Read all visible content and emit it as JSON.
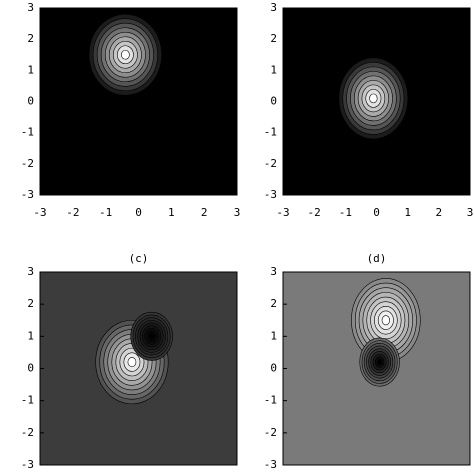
{
  "chart_data": [
    {
      "type": "contour",
      "background": "#000000",
      "xlim": [
        -3,
        3
      ],
      "ylim": [
        -3,
        3
      ],
      "xticks": [
        -3,
        -2,
        -1,
        0,
        1,
        2,
        3
      ],
      "yticks": [
        -3,
        -2,
        -1,
        0,
        1,
        2,
        3
      ],
      "peaks": [
        {
          "x": -0.4,
          "y": 1.5,
          "color": "#ffffff"
        }
      ]
    },
    {
      "type": "contour",
      "background": "#000000",
      "xlim": [
        -3,
        3
      ],
      "ylim": [
        -3,
        3
      ],
      "xticks": [
        -3,
        -2,
        -1,
        0,
        1,
        2,
        3
      ],
      "yticks": [
        -3,
        -2,
        -1,
        0,
        1,
        2,
        3
      ],
      "peaks": [
        {
          "x": -0.1,
          "y": 0.1,
          "color": "#ffffff"
        }
      ]
    },
    {
      "type": "contour",
      "title": "(c)",
      "background": "#3c3c3c",
      "xlim": [
        -3,
        3
      ],
      "ylim": [
        -3,
        3
      ],
      "yticks": [
        -3,
        -2,
        -1,
        0,
        1,
        2,
        3
      ],
      "peaks": [
        {
          "x": -0.2,
          "y": 0.2,
          "color": "#ffffff"
        },
        {
          "x": 0.4,
          "y": 1.0,
          "color": "#000000"
        }
      ]
    },
    {
      "type": "contour",
      "title": "(d)",
      "background": "#7a7a7a",
      "xlim": [
        -3,
        3
      ],
      "ylim": [
        -3,
        3
      ],
      "yticks": [
        -3,
        -2,
        -1,
        0,
        1,
        2,
        3
      ],
      "peaks": [
        {
          "x": 0.3,
          "y": 1.5,
          "color": "#ffffff"
        },
        {
          "x": 0.1,
          "y": 0.2,
          "color": "#000000"
        }
      ]
    }
  ]
}
